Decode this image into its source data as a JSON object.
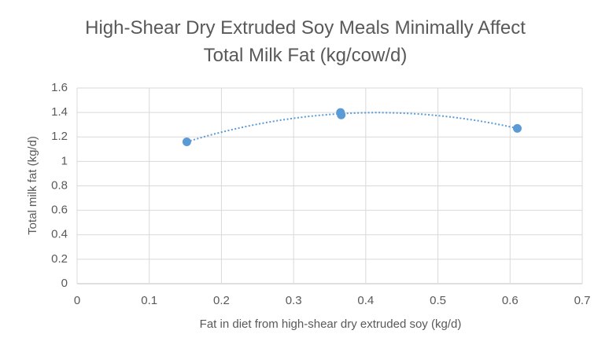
{
  "chart_data": {
    "type": "scatter",
    "title": "High-Shear Dry Extruded Soy Meals Minimally Affect Total Milk Fat (kg/cow/d)",
    "x_label": "Fat in diet from high-shear dry extruded soy (kg/d)",
    "y_label": "Total milk fat (kg/d)",
    "x": [
      0.152,
      0.365,
      0.366,
      0.61
    ],
    "values": [
      1.16,
      1.4,
      1.38,
      1.27
    ],
    "color": "#5b9bd5",
    "trendline": "polynomial",
    "xlim": [
      0,
      0.7
    ],
    "xticks": [
      0,
      0.1,
      0.2,
      0.3,
      0.4,
      0.5,
      0.6,
      0.7
    ],
    "ylim": [
      0,
      1.6
    ],
    "yticks": [
      0,
      0.2,
      0.4,
      0.6,
      0.8,
      1,
      1.2,
      1.4,
      1.6
    ],
    "grid": true
  }
}
